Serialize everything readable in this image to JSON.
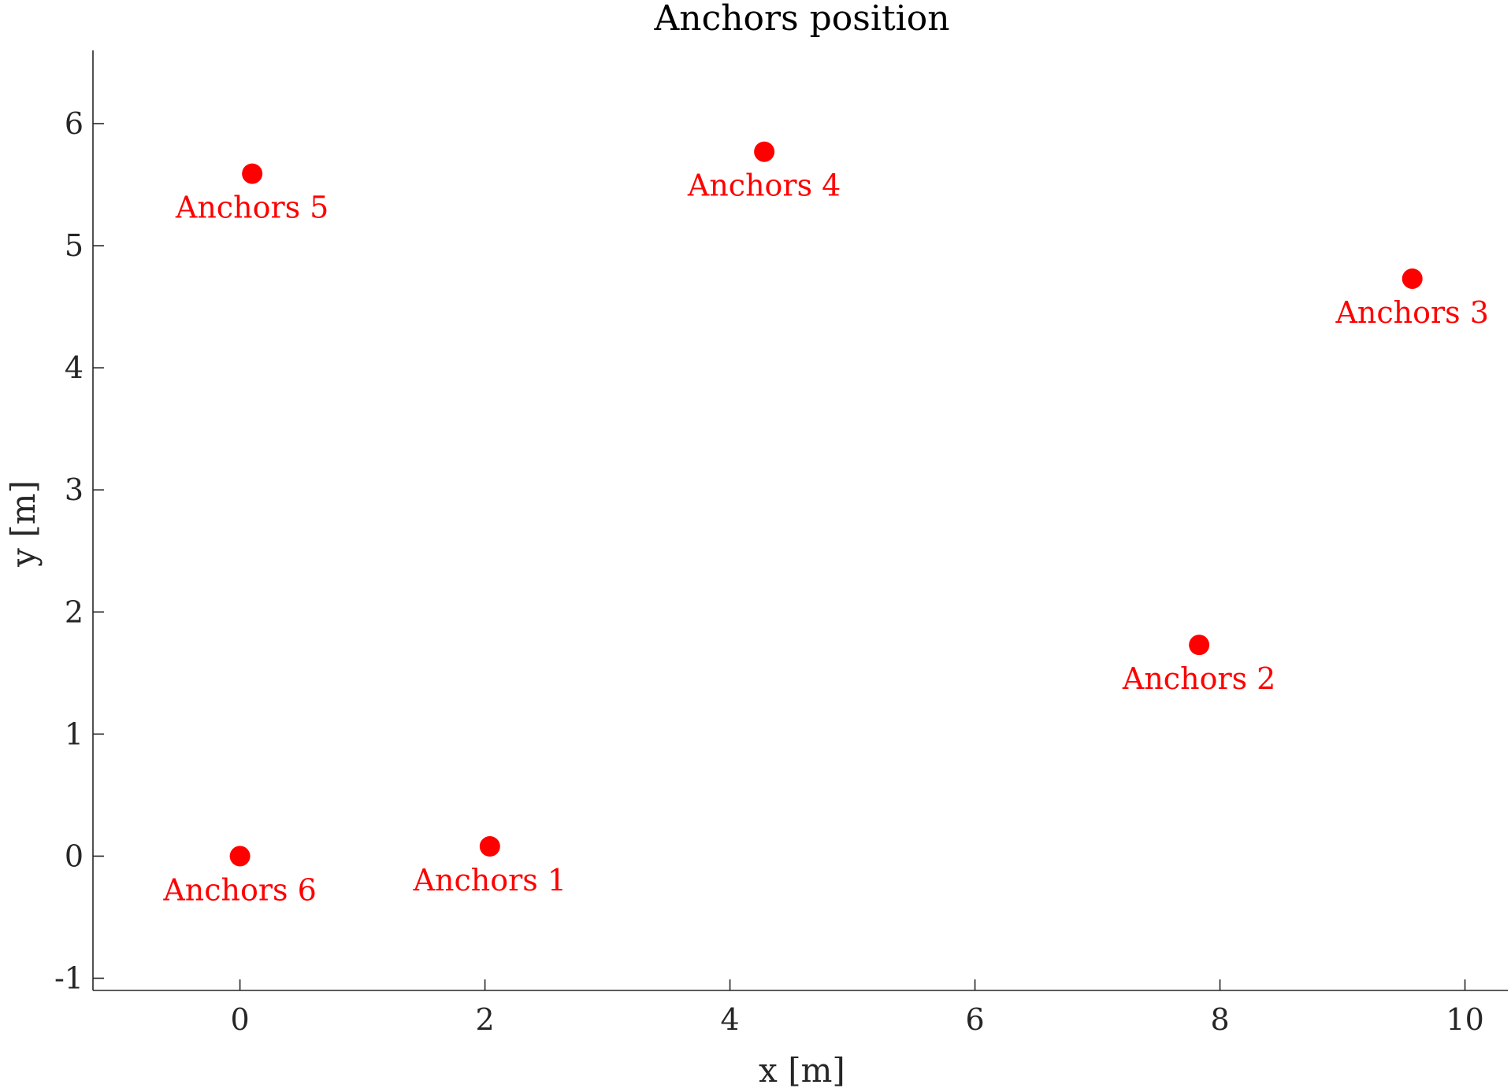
{
  "chart_data": {
    "type": "scatter",
    "title": "Anchors position",
    "xlabel": "x [m]",
    "ylabel": "y [m]",
    "xlim": [
      -1.2,
      10.35
    ],
    "ylim": [
      -1.1,
      6.6
    ],
    "xticks": [
      0,
      2,
      4,
      6,
      8,
      10
    ],
    "yticks": [
      -1,
      0,
      1,
      2,
      3,
      4,
      5,
      6
    ],
    "grid": false,
    "series": [
      {
        "color": "#ff0000",
        "points": [
          {
            "label": "Anchors 1",
            "x": 2.04,
            "y": 0.08
          },
          {
            "label": "Anchors 2",
            "x": 7.83,
            "y": 1.73
          },
          {
            "label": "Anchors 3",
            "x": 9.57,
            "y": 4.73
          },
          {
            "label": "Anchors 4",
            "x": 4.28,
            "y": 5.77
          },
          {
            "label": "Anchors 5",
            "x": 0.1,
            "y": 5.59
          },
          {
            "label": "Anchors 6",
            "x": 0.0,
            "y": 0.0
          }
        ]
      }
    ]
  }
}
